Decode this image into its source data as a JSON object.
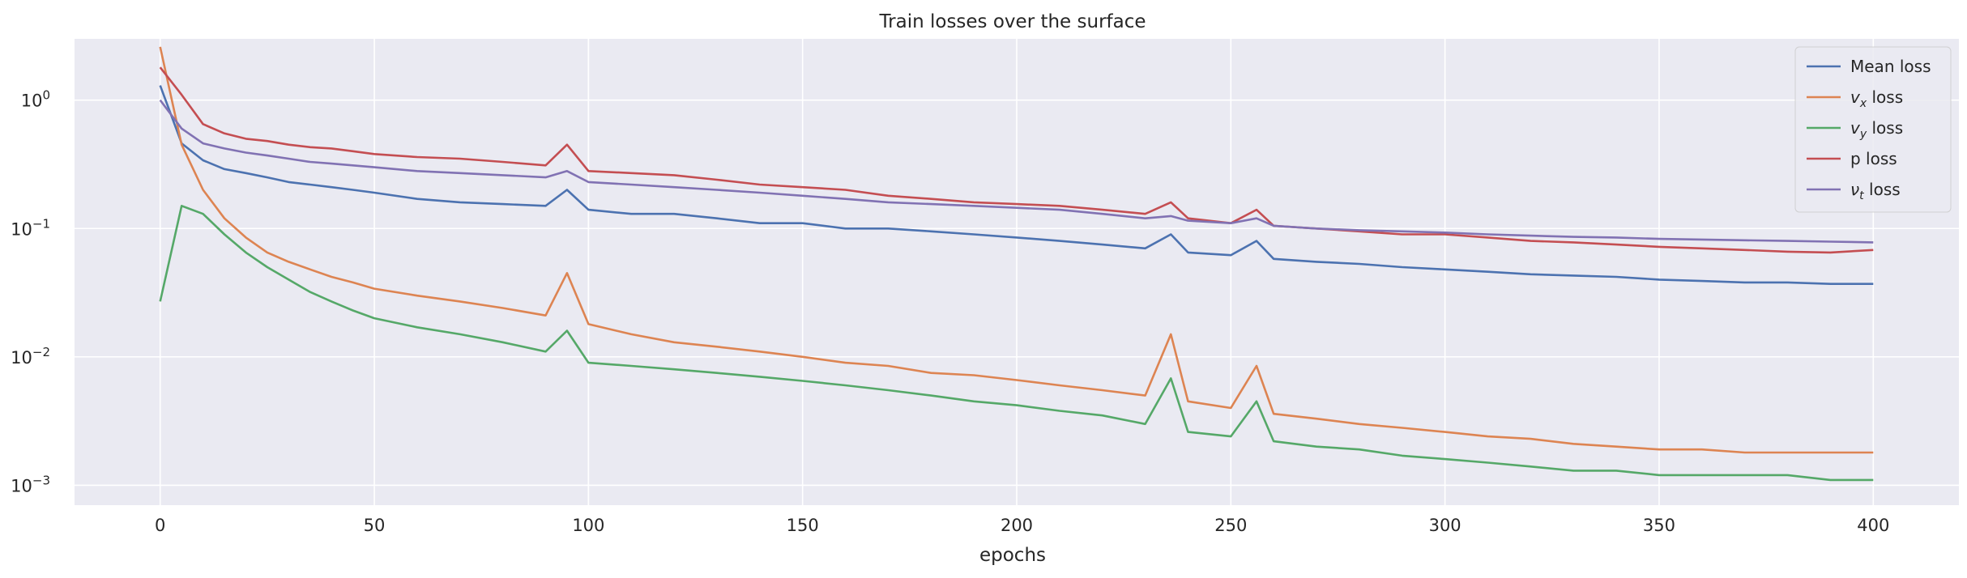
{
  "chart_data": {
    "type": "line",
    "title": "Train losses over the surface",
    "xlabel": "epochs",
    "ylabel": "",
    "xlim": [
      -20,
      420
    ],
    "ylim": [
      0.0007,
      3.0
    ],
    "yscale": "log",
    "x_ticks": [
      "0",
      "50",
      "100",
      "150",
      "200",
      "250",
      "300",
      "350",
      "400"
    ],
    "y_ticks": [
      {
        "base": "10",
        "exp": "0",
        "value": 1
      },
      {
        "base": "10",
        "exp": "−1",
        "value": 0.1
      },
      {
        "base": "10",
        "exp": "−2",
        "value": 0.01
      },
      {
        "base": "10",
        "exp": "−3",
        "value": 0.001
      }
    ],
    "grid": true,
    "legend_position": "top-right",
    "background": "#eaeaf2",
    "x": [
      0,
      5,
      10,
      15,
      20,
      25,
      30,
      35,
      40,
      45,
      50,
      60,
      70,
      80,
      90,
      95,
      100,
      110,
      120,
      130,
      140,
      150,
      160,
      170,
      180,
      190,
      200,
      210,
      220,
      230,
      236,
      240,
      250,
      256,
      260,
      270,
      280,
      290,
      300,
      310,
      320,
      330,
      340,
      350,
      360,
      370,
      380,
      390,
      400
    ],
    "series": [
      {
        "legend": {
          "main": "Mean loss",
          "sub": "",
          "rest": ""
        },
        "color": "#4c72b0",
        "values": [
          1.3,
          0.46,
          0.34,
          0.29,
          0.27,
          0.25,
          0.23,
          0.22,
          0.21,
          0.2,
          0.19,
          0.17,
          0.16,
          0.155,
          0.15,
          0.2,
          0.14,
          0.13,
          0.13,
          0.12,
          0.11,
          0.11,
          0.1,
          0.1,
          0.095,
          0.09,
          0.085,
          0.08,
          0.075,
          0.07,
          0.09,
          0.065,
          0.062,
          0.08,
          0.058,
          0.055,
          0.053,
          0.05,
          0.048,
          0.046,
          0.044,
          0.043,
          0.042,
          0.04,
          0.039,
          0.038,
          0.038,
          0.037,
          0.037
        ]
      },
      {
        "legend": {
          "main": "v",
          "sub": "x",
          "rest": " loss"
        },
        "color": "#dd8452",
        "values": [
          2.6,
          0.45,
          0.2,
          0.12,
          0.085,
          0.065,
          0.055,
          0.048,
          0.042,
          0.038,
          0.034,
          0.03,
          0.027,
          0.024,
          0.021,
          0.045,
          0.018,
          0.015,
          0.013,
          0.012,
          0.011,
          0.01,
          0.009,
          0.0085,
          0.0075,
          0.0072,
          0.0066,
          0.006,
          0.0055,
          0.005,
          0.015,
          0.0045,
          0.004,
          0.0085,
          0.0036,
          0.0033,
          0.003,
          0.0028,
          0.0026,
          0.0024,
          0.0023,
          0.0021,
          0.002,
          0.0019,
          0.0019,
          0.0018,
          0.0018,
          0.0018,
          0.0018
        ]
      },
      {
        "legend": {
          "main": "v",
          "sub": "y",
          "rest": " loss"
        },
        "color": "#55a868",
        "values": [
          0.027,
          0.15,
          0.13,
          0.09,
          0.065,
          0.05,
          0.04,
          0.032,
          0.027,
          0.023,
          0.02,
          0.017,
          0.015,
          0.013,
          0.011,
          0.016,
          0.009,
          0.0085,
          0.008,
          0.0075,
          0.007,
          0.0065,
          0.006,
          0.0055,
          0.005,
          0.0045,
          0.0042,
          0.0038,
          0.0035,
          0.003,
          0.0068,
          0.0026,
          0.0024,
          0.0045,
          0.0022,
          0.002,
          0.0019,
          0.0017,
          0.0016,
          0.0015,
          0.0014,
          0.0013,
          0.0013,
          0.0012,
          0.0012,
          0.0012,
          0.0012,
          0.0011,
          0.0011
        ]
      },
      {
        "legend": {
          "main": "p",
          "sub": "",
          "rest": " loss"
        },
        "color": "#c44e52",
        "values": [
          1.8,
          1.1,
          0.65,
          0.55,
          0.5,
          0.48,
          0.45,
          0.43,
          0.42,
          0.4,
          0.38,
          0.36,
          0.35,
          0.33,
          0.31,
          0.45,
          0.28,
          0.27,
          0.26,
          0.24,
          0.22,
          0.21,
          0.2,
          0.18,
          0.17,
          0.16,
          0.155,
          0.15,
          0.14,
          0.13,
          0.16,
          0.12,
          0.11,
          0.14,
          0.105,
          0.1,
          0.095,
          0.09,
          0.09,
          0.085,
          0.08,
          0.078,
          0.075,
          0.072,
          0.07,
          0.068,
          0.066,
          0.065,
          0.068
        ]
      },
      {
        "legend": {
          "main": "ν",
          "sub": "t",
          "rest": " loss"
        },
        "color": "#8172b3",
        "values": [
          1.0,
          0.6,
          0.46,
          0.42,
          0.39,
          0.37,
          0.35,
          0.33,
          0.32,
          0.31,
          0.3,
          0.28,
          0.27,
          0.26,
          0.25,
          0.28,
          0.23,
          0.22,
          0.21,
          0.2,
          0.19,
          0.18,
          0.17,
          0.16,
          0.155,
          0.15,
          0.145,
          0.14,
          0.13,
          0.12,
          0.125,
          0.115,
          0.11,
          0.12,
          0.105,
          0.1,
          0.097,
          0.095,
          0.093,
          0.09,
          0.088,
          0.086,
          0.085,
          0.083,
          0.082,
          0.081,
          0.08,
          0.079,
          0.078
        ]
      }
    ]
  }
}
